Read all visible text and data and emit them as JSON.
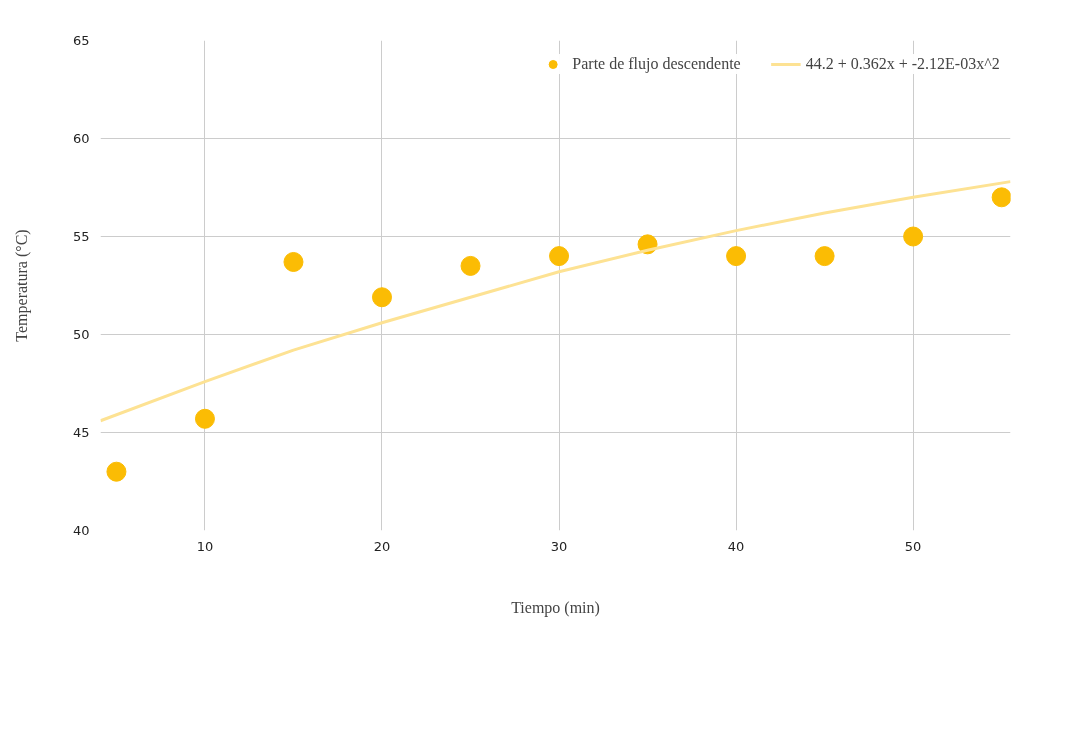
{
  "chart_data": {
    "type": "scatter",
    "xlabel": "Tiempo (min)",
    "ylabel": "Temperatura (°C)",
    "xlim": [
      4.1,
      55.5
    ],
    "xticks": [
      10,
      20,
      30,
      40,
      50
    ],
    "ylim": [
      40,
      65
    ],
    "yticks": [
      40,
      45,
      50,
      55,
      60,
      65
    ],
    "grid": true,
    "legend": "top right",
    "series": [
      {
        "name": "Parte de flujo descendente",
        "marker": "circle",
        "color": "#fbbc04",
        "x": [
          5,
          10,
          15,
          20,
          25,
          30,
          35,
          40,
          45,
          50,
          55
        ],
        "values": [
          43.0,
          45.7,
          53.7,
          51.9,
          53.5,
          54.0,
          54.6,
          54.0,
          54.0,
          55.0,
          57.0
        ]
      },
      {
        "name": "44.2 + 0.362x + -2.12E-03x^2",
        "type": "line",
        "color": "#fde293",
        "x": [
          4.1,
          10,
          15,
          20,
          25,
          30,
          35,
          40,
          45,
          50,
          55.5
        ],
        "values": [
          45.6,
          47.6,
          49.2,
          50.6,
          51.9,
          53.2,
          54.3,
          55.3,
          56.2,
          57.0,
          57.8
        ]
      }
    ]
  }
}
